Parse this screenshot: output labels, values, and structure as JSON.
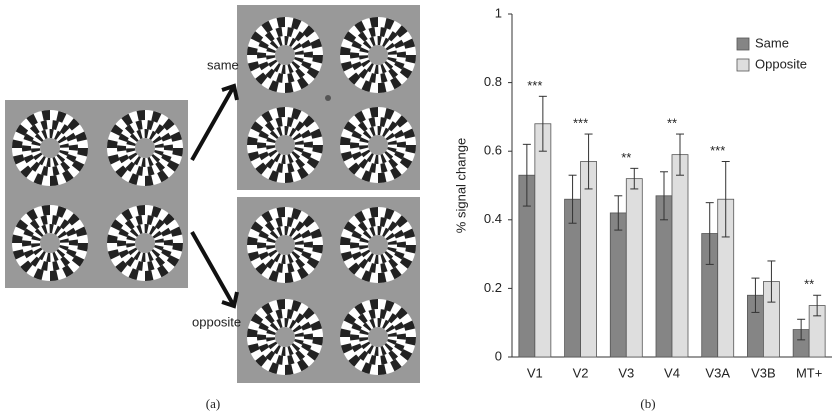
{
  "figure": {
    "panel_a": {
      "label_same": "same",
      "label_opposite": "opposite",
      "caption": "(a)"
    },
    "panel_b": {
      "caption": "(b)"
    }
  },
  "chart_data": {
    "type": "bar",
    "ylabel": "% signal change",
    "categories": [
      "V1",
      "V2",
      "V3",
      "V4",
      "V3A",
      "V3B",
      "MT+"
    ],
    "series": [
      {
        "name": "Same",
        "color": "#858585",
        "values": [
          0.53,
          0.46,
          0.42,
          0.47,
          0.36,
          0.18,
          0.08
        ],
        "errors": [
          0.09,
          0.07,
          0.05,
          0.07,
          0.09,
          0.05,
          0.03
        ]
      },
      {
        "name": "Opposite",
        "color": "#dedede",
        "values": [
          0.68,
          0.57,
          0.52,
          0.59,
          0.46,
          0.22,
          0.15
        ],
        "errors": [
          0.08,
          0.08,
          0.03,
          0.06,
          0.11,
          0.06,
          0.03
        ]
      }
    ],
    "annotations": [
      "***",
      "***",
      "**",
      "**",
      "***",
      null,
      "**"
    ],
    "ylim": [
      0,
      1
    ],
    "yticks": [
      0,
      0.2,
      0.4,
      0.6,
      0.8,
      1
    ],
    "legend": "upper right"
  }
}
